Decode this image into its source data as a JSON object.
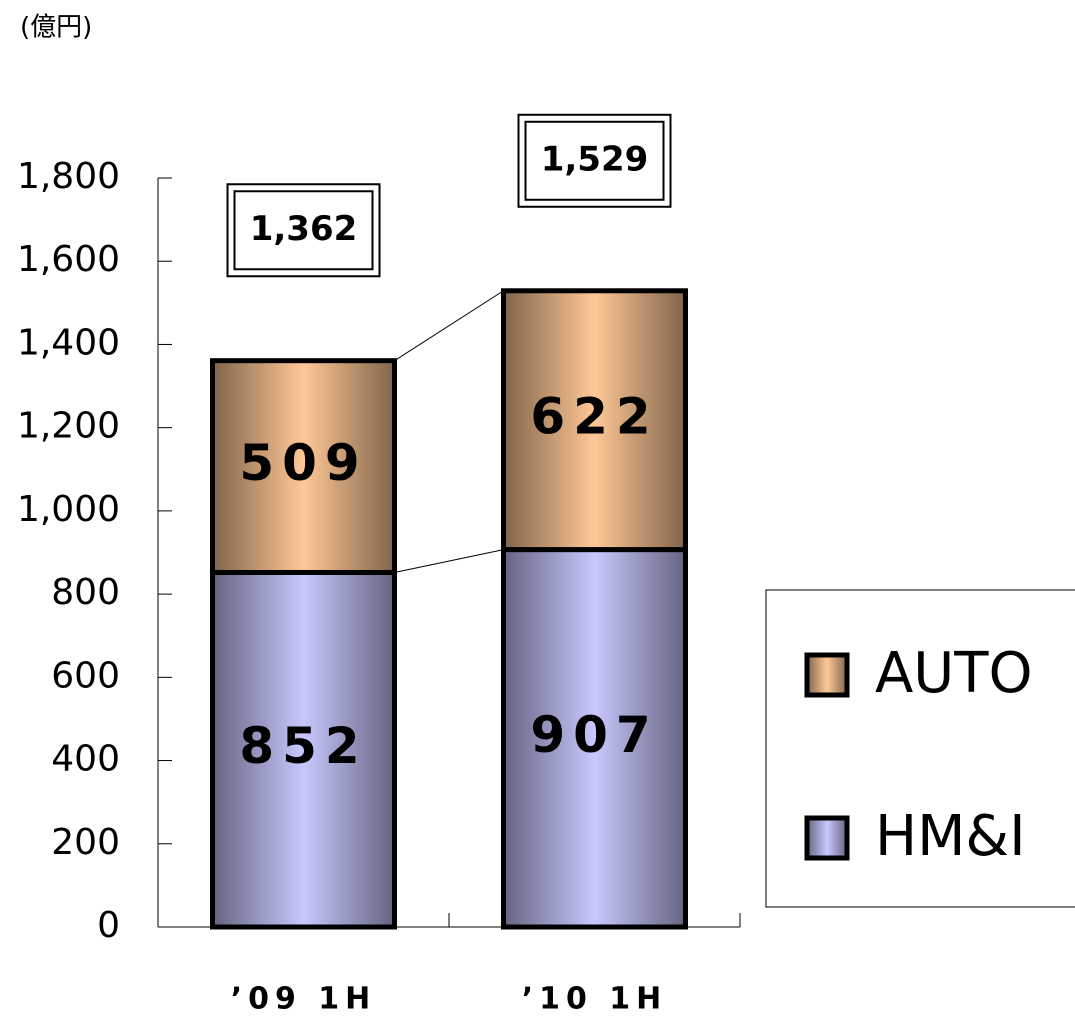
{
  "chart_data": {
    "type": "stacked_bar",
    "unit_label": "(億円)",
    "categories": [
      "’09 1H",
      "’10 1H"
    ],
    "series": [
      {
        "name": "HM&I",
        "color": "#c8c8ff",
        "values": [
          852,
          907
        ]
      },
      {
        "name": "AUTO",
        "color": "#ffc896",
        "values": [
          509,
          622
        ]
      }
    ],
    "totals": [
      1362,
      1529
    ],
    "total_labels": [
      "1,362",
      "1,529"
    ],
    "ylim": [
      0,
      1800
    ],
    "yticks": [
      0,
      200,
      400,
      600,
      800,
      {
        "value": 1000,
        "label": "1,000"
      },
      {
        "value": 1200,
        "label": "1,200"
      },
      {
        "value": 1400,
        "label": "1,400"
      },
      {
        "value": 1600,
        "label": "1,600"
      },
      {
        "value": 1800,
        "label": "1,800"
      }
    ],
    "legend": "right"
  }
}
